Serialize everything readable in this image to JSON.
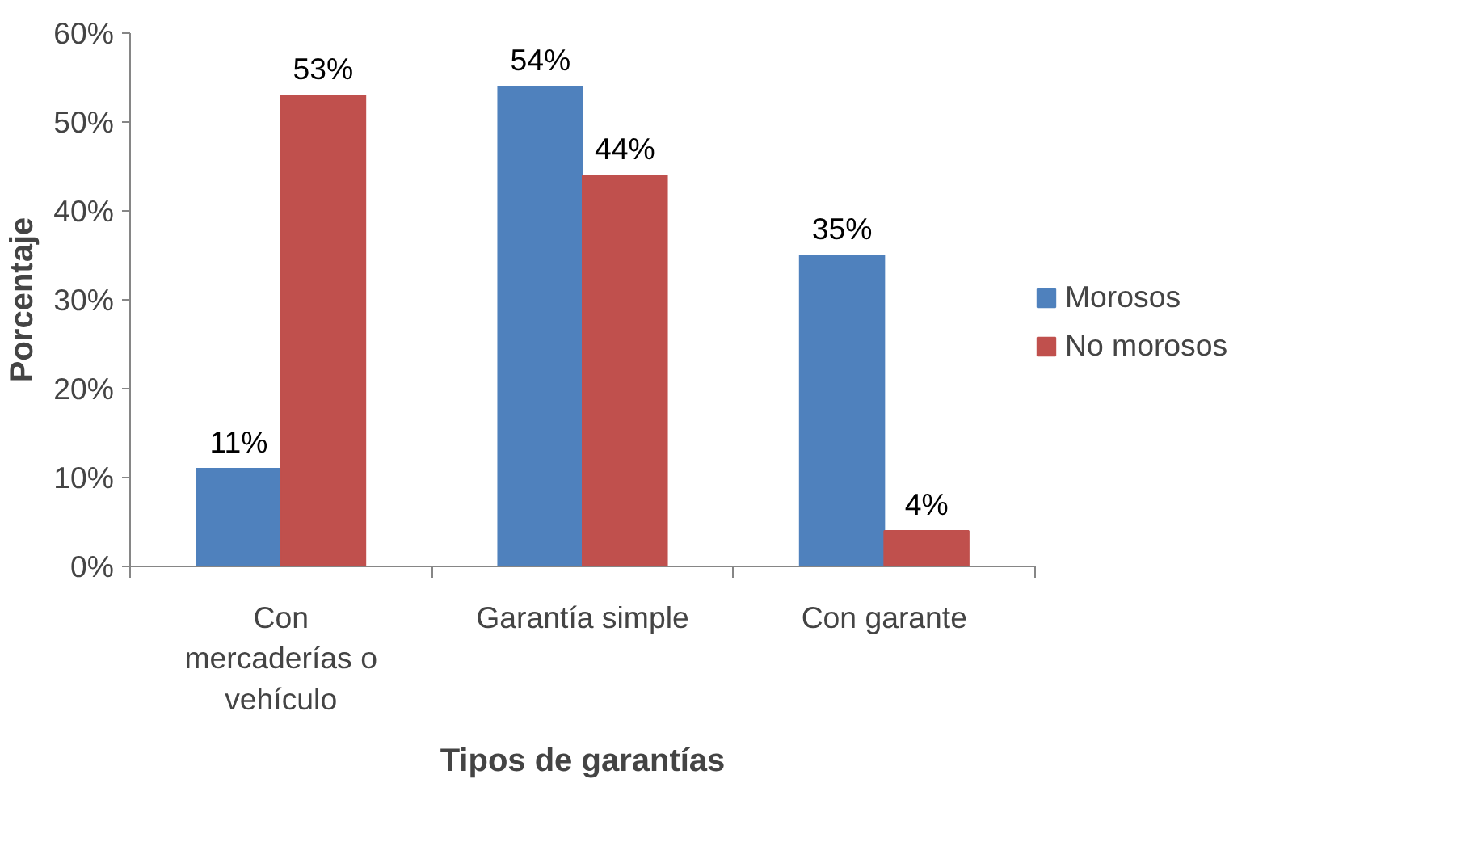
{
  "chart_data": {
    "type": "bar",
    "xlabel": "Tipos de garantías",
    "ylabel": "Porcentaje",
    "categories": [
      "Con mercaderías o vehículo",
      "Garantía simple",
      "Con garante"
    ],
    "series": [
      {
        "name": "Morosos",
        "color": "#4f81bd",
        "values": [
          11,
          54,
          35
        ],
        "value_labels": [
          "11%",
          "54%",
          "35%"
        ]
      },
      {
        "name": "No morosos",
        "color": "#c0504d",
        "values": [
          53,
          44,
          4
        ],
        "value_labels": [
          "53%",
          "44%",
          "4%"
        ]
      }
    ],
    "ylim": [
      0,
      60
    ],
    "yticks": [
      {
        "value": 0,
        "label": "0%"
      },
      {
        "value": 10,
        "label": "10%"
      },
      {
        "value": 20,
        "label": "20%"
      },
      {
        "value": 30,
        "label": "30%"
      },
      {
        "value": 40,
        "label": "40%"
      },
      {
        "value": 50,
        "label": "50%"
      },
      {
        "value": 60,
        "label": "60%"
      }
    ],
    "grid": false,
    "legend": "right"
  }
}
